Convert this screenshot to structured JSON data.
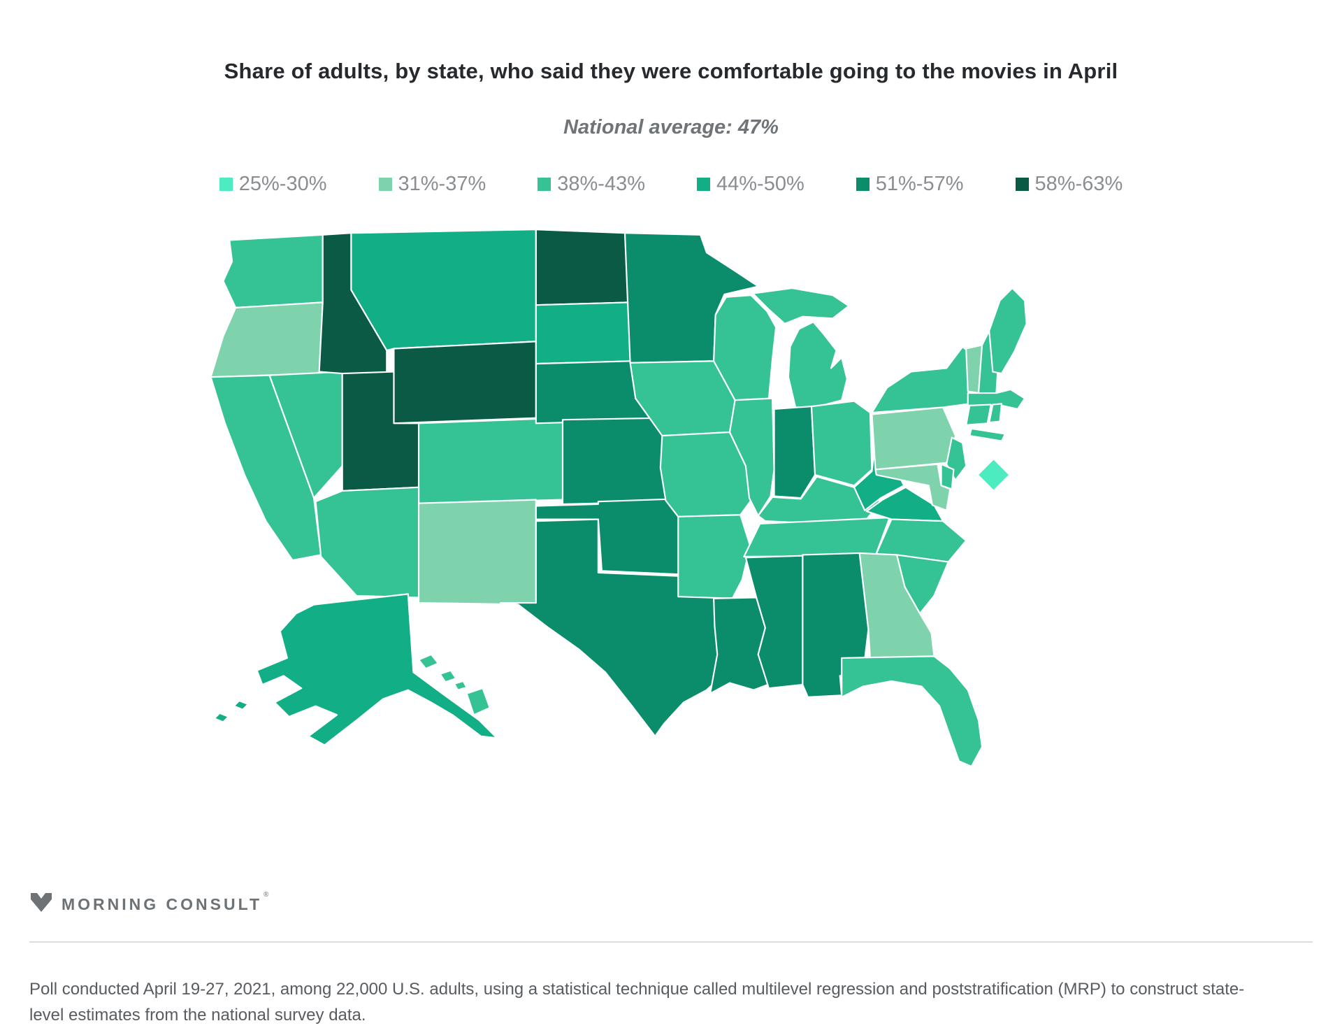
{
  "header": {
    "title": "Share of adults, by state, who said they were comfortable going to the movies in April",
    "subtitle": "National average: 47%"
  },
  "legend": {
    "bins": [
      {
        "label": "25%-30%",
        "color": "#4debc0"
      },
      {
        "label": "31%-37%",
        "color": "#7fd3ac"
      },
      {
        "label": "38%-43%",
        "color": "#35c294"
      },
      {
        "label": "44%-50%",
        "color": "#12ae85"
      },
      {
        "label": "51%-57%",
        "color": "#0b8d6c"
      },
      {
        "label": "58%-63%",
        "color": "#0a5a46"
      }
    ]
  },
  "chart_data": {
    "type": "heatmap",
    "title": "Share of adults, by state, who said they were comfortable going to the movies in April",
    "subtitle": "National average: 47%",
    "legend_position": "top",
    "categories": [
      "25%-30%",
      "31%-37%",
      "38%-43%",
      "44%-50%",
      "51%-57%",
      "58%-63%"
    ],
    "national_average": "47%"
  },
  "map": {
    "states": [
      {
        "abbr": "WA",
        "name": "Washington",
        "bin": 2
      },
      {
        "abbr": "OR",
        "name": "Oregon",
        "bin": 1
      },
      {
        "abbr": "CA",
        "name": "California",
        "bin": 2
      },
      {
        "abbr": "NV",
        "name": "Nevada",
        "bin": 2
      },
      {
        "abbr": "ID",
        "name": "Idaho",
        "bin": 5
      },
      {
        "abbr": "MT",
        "name": "Montana",
        "bin": 3
      },
      {
        "abbr": "WY",
        "name": "Wyoming",
        "bin": 5
      },
      {
        "abbr": "UT",
        "name": "Utah",
        "bin": 5
      },
      {
        "abbr": "CO",
        "name": "Colorado",
        "bin": 2
      },
      {
        "abbr": "AZ",
        "name": "Arizona",
        "bin": 2
      },
      {
        "abbr": "NM",
        "name": "New Mexico",
        "bin": 1
      },
      {
        "abbr": "ND",
        "name": "North Dakota",
        "bin": 5
      },
      {
        "abbr": "SD",
        "name": "South Dakota",
        "bin": 3
      },
      {
        "abbr": "NE",
        "name": "Nebraska",
        "bin": 4
      },
      {
        "abbr": "KS",
        "name": "Kansas",
        "bin": 4
      },
      {
        "abbr": "OK",
        "name": "Oklahoma",
        "bin": 4
      },
      {
        "abbr": "TX",
        "name": "Texas",
        "bin": 4
      },
      {
        "abbr": "MN",
        "name": "Minnesota",
        "bin": 4
      },
      {
        "abbr": "IA",
        "name": "Iowa",
        "bin": 2
      },
      {
        "abbr": "MO",
        "name": "Missouri",
        "bin": 2
      },
      {
        "abbr": "AR",
        "name": "Arkansas",
        "bin": 2
      },
      {
        "abbr": "LA",
        "name": "Louisiana",
        "bin": 4
      },
      {
        "abbr": "WI",
        "name": "Wisconsin",
        "bin": 2
      },
      {
        "abbr": "IL",
        "name": "Illinois",
        "bin": 2
      },
      {
        "abbr": "MI",
        "name": "Michigan",
        "bin": 2
      },
      {
        "abbr": "IN",
        "name": "Indiana",
        "bin": 4
      },
      {
        "abbr": "OH",
        "name": "Ohio",
        "bin": 2
      },
      {
        "abbr": "KY",
        "name": "Kentucky",
        "bin": 2
      },
      {
        "abbr": "TN",
        "name": "Tennessee",
        "bin": 2
      },
      {
        "abbr": "WV",
        "name": "West Virginia",
        "bin": 3
      },
      {
        "abbr": "VA",
        "name": "Virginia",
        "bin": 3
      },
      {
        "abbr": "NC",
        "name": "North Carolina",
        "bin": 2
      },
      {
        "abbr": "SC",
        "name": "South Carolina",
        "bin": 2
      },
      {
        "abbr": "GA",
        "name": "Georgia",
        "bin": 1
      },
      {
        "abbr": "AL",
        "name": "Alabama",
        "bin": 4
      },
      {
        "abbr": "MS",
        "name": "Mississippi",
        "bin": 4
      },
      {
        "abbr": "FL",
        "name": "Florida",
        "bin": 2
      },
      {
        "abbr": "PA",
        "name": "Pennsylvania",
        "bin": 1
      },
      {
        "abbr": "NY",
        "name": "New York",
        "bin": 2
      },
      {
        "abbr": "NJ",
        "name": "New Jersey",
        "bin": 2
      },
      {
        "abbr": "MD",
        "name": "Maryland",
        "bin": 1
      },
      {
        "abbr": "DE",
        "name": "Delaware",
        "bin": 2
      },
      {
        "abbr": "VT",
        "name": "Vermont",
        "bin": 1
      },
      {
        "abbr": "NH",
        "name": "New Hampshire",
        "bin": 2
      },
      {
        "abbr": "ME",
        "name": "Maine",
        "bin": 2
      },
      {
        "abbr": "MA",
        "name": "Massachusetts",
        "bin": 2
      },
      {
        "abbr": "CT",
        "name": "Connecticut",
        "bin": 2
      },
      {
        "abbr": "RI",
        "name": "Rhode Island",
        "bin": 2
      },
      {
        "abbr": "DC",
        "name": "Washington, D.C.",
        "bin": 0
      },
      {
        "abbr": "AK",
        "name": "Alaska",
        "bin": 3
      },
      {
        "abbr": "HI",
        "name": "Hawaii",
        "bin": 2
      }
    ]
  },
  "logo": {
    "text": "MORNING CONSULT",
    "reg": "®"
  },
  "footer": {
    "source_line": "Poll conducted April 19-27, 2021, among 22,000 U.S. adults, using a statistical technique called multilevel regression and poststratification (MRP) to construct state-level estimates from the national survey data."
  }
}
